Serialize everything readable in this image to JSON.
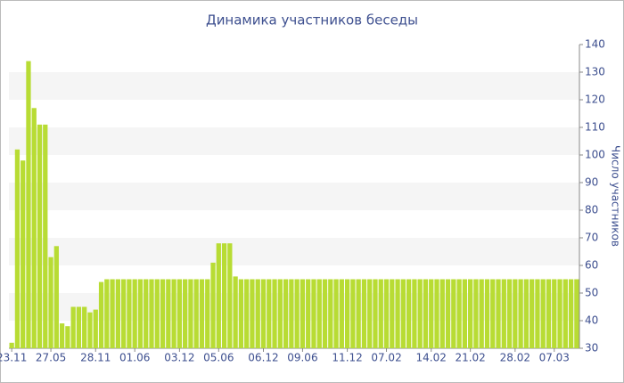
{
  "chart_data": {
    "type": "bar",
    "title": "Динамика участников беседы",
    "y_label": "Число участников",
    "categories": [
      "23.11",
      null,
      null,
      null,
      null,
      null,
      null,
      "27.05",
      null,
      null,
      null,
      null,
      null,
      null,
      null,
      "28.11",
      null,
      null,
      null,
      null,
      null,
      null,
      "01.06",
      null,
      null,
      null,
      null,
      null,
      null,
      null,
      "03.12",
      null,
      null,
      null,
      null,
      null,
      null,
      "05.06",
      null,
      null,
      null,
      null,
      null,
      null,
      null,
      "06.12",
      null,
      null,
      null,
      null,
      null,
      null,
      "09.06",
      null,
      null,
      null,
      null,
      null,
      null,
      null,
      "11.12",
      null,
      null,
      null,
      null,
      null,
      null,
      "07.02",
      null,
      null,
      null,
      null,
      null,
      null,
      null,
      "14.02",
      null,
      null,
      null,
      null,
      null,
      null,
      "21.02",
      null,
      null,
      null,
      null,
      null,
      null,
      null,
      "28.02",
      null,
      null,
      null,
      null,
      null,
      null,
      "07.03",
      null,
      null,
      null,
      null
    ],
    "values": [
      32,
      102,
      98,
      134,
      117,
      111,
      111,
      63,
      67,
      39,
      38,
      45,
      45,
      45,
      43,
      44,
      54,
      55,
      55,
      55,
      55,
      55,
      55,
      55,
      55,
      55,
      55,
      55,
      55,
      55,
      55,
      55,
      55,
      55,
      55,
      55,
      61,
      68,
      68,
      68,
      56,
      55,
      55,
      55,
      55,
      55,
      55,
      55,
      55,
      55,
      55,
      55,
      55,
      55,
      55,
      55,
      55,
      55,
      55,
      55,
      55,
      55,
      55,
      55,
      55,
      55,
      55,
      55,
      55,
      55,
      55,
      55,
      55,
      55,
      55,
      55,
      55,
      55,
      55,
      55,
      55,
      55,
      55,
      55,
      55,
      55,
      55,
      55,
      55,
      55,
      55,
      55,
      55,
      55,
      55,
      55,
      55,
      55,
      55,
      55,
      55,
      55
    ],
    "color": "#b8dc34",
    "ylim": [
      30,
      140
    ],
    "yticks": [
      30,
      40,
      50,
      60,
      70,
      80,
      90,
      100,
      110,
      120,
      130,
      140
    ],
    "y_axis_side": "right",
    "banded_background": true
  }
}
